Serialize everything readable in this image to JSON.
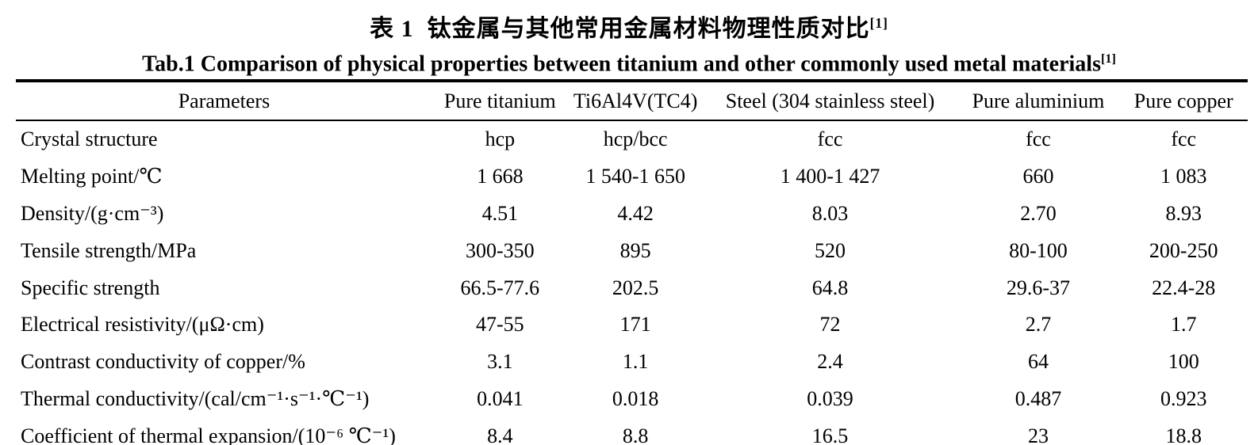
{
  "title_cn": {
    "text": "表 1  钛金属与其他常用金属材料物理性质对比",
    "ref": "[1]"
  },
  "title_en": {
    "text": "Tab.1 Comparison of physical properties between titanium and other commonly used metal materials",
    "ref": "[1]"
  },
  "table": {
    "columns": [
      "Parameters",
      "Pure titanium",
      "Ti6Al4V(TC4)",
      "Steel (304 stainless steel)",
      "Pure aluminium",
      "Pure copper"
    ],
    "rows": [
      {
        "parameter": "Crystal structure",
        "values": [
          "hcp",
          "hcp/bcc",
          "fcc",
          "fcc",
          "fcc"
        ]
      },
      {
        "parameter": "Melting point/℃",
        "values": [
          "1 668",
          "1 540-1 650",
          "1 400-1 427",
          "660",
          "1 083"
        ]
      },
      {
        "parameter": "Density/(g·cm⁻³)",
        "values": [
          "4.51",
          "4.42",
          "8.03",
          "2.70",
          "8.93"
        ]
      },
      {
        "parameter": "Tensile strength/MPa",
        "values": [
          "300-350",
          "895",
          "520",
          "80-100",
          "200-250"
        ]
      },
      {
        "parameter": "Specific strength",
        "values": [
          "66.5-77.6",
          "202.5",
          "64.8",
          "29.6-37",
          "22.4-28"
        ]
      },
      {
        "parameter": "Electrical resistivity/(μΩ·cm)",
        "values": [
          "47-55",
          "171",
          "72",
          "2.7",
          "1.7"
        ]
      },
      {
        "parameter": "Contrast conductivity of copper/%",
        "values": [
          "3.1",
          "1.1",
          "2.4",
          "64",
          "100"
        ]
      },
      {
        "parameter": "Thermal conductivity/(cal/cm⁻¹·s⁻¹·℃⁻¹)",
        "values": [
          "0.041",
          "0.018",
          "0.039",
          "0.487",
          "0.923"
        ]
      },
      {
        "parameter": "Coefficient of thermal expansion/(10⁻⁶ ℃⁻¹)",
        "values": [
          "8.4",
          "8.8",
          "16.5",
          "23",
          "18.8"
        ]
      }
    ]
  },
  "colors": {
    "text": "#000000",
    "background": "#ffffff",
    "rule": "#000000"
  }
}
